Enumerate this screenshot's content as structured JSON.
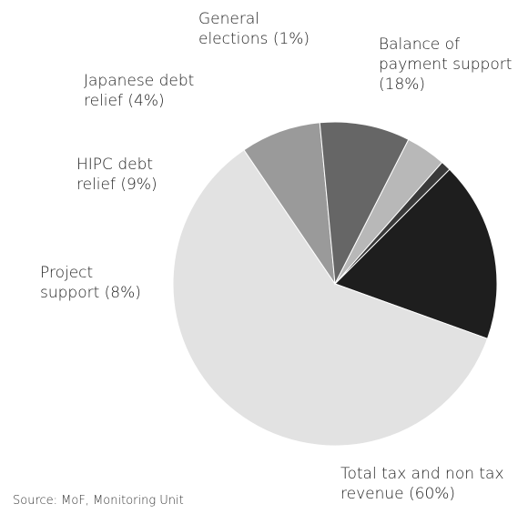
{
  "chart_data": {
    "type": "pie",
    "categories": [
      "Balance of payment support",
      "Total tax and non tax revenue",
      "Project support",
      "HIPC debt relief",
      "Japanese debt relief",
      "General elections"
    ],
    "values": [
      18,
      60,
      8,
      9,
      4,
      1
    ],
    "colors": [
      "#1e1e1e",
      "#e2e2e2",
      "#9a9a9a",
      "#666666",
      "#b8b8b8",
      "#3a3a3a"
    ],
    "labels": [
      {
        "line1": "Balance of",
        "line2": "payment support",
        "line3": "(18%)"
      },
      {
        "line1": "Total tax and non tax",
        "line2": "revenue (60%)"
      },
      {
        "line1": "Project",
        "line2": "support (8%)"
      },
      {
        "line1": "HIPC debt",
        "line2": "relief (9%)"
      },
      {
        "line1": "Japanese debt",
        "line2": "relief (4%)"
      },
      {
        "line1": "General",
        "line2": "elections (1%)"
      }
    ],
    "legend": "none",
    "grid": false
  },
  "source": "Source: MoF, Monitoring Unit"
}
